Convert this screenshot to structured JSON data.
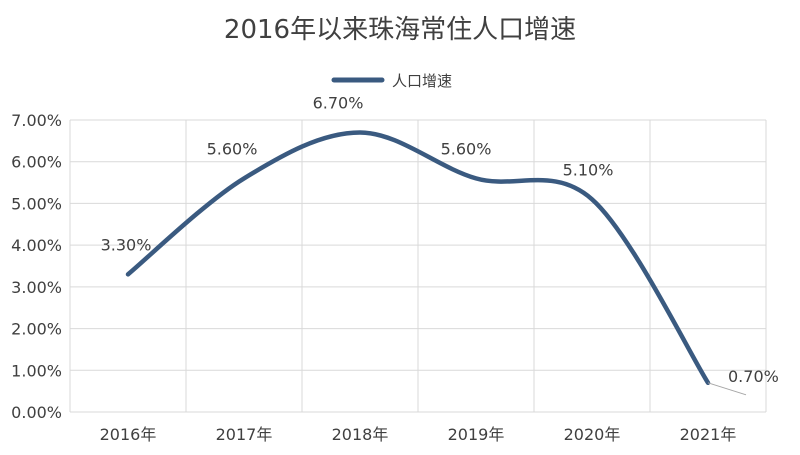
{
  "chart_data": {
    "type": "line",
    "title": "2016年以来珠海常住人口增速",
    "categories": [
      "2016年",
      "2017年",
      "2018年",
      "2019年",
      "2020年",
      "2021年"
    ],
    "series": [
      {
        "name": "人口增速",
        "values": [
          3.3,
          5.6,
          6.7,
          5.6,
          5.1,
          0.7
        ],
        "labels": [
          "3.30%",
          "5.60%",
          "6.70%",
          "5.60%",
          "5.10%",
          "0.70%"
        ]
      }
    ],
    "ylim": [
      0,
      7
    ],
    "yticks": [
      0,
      1,
      2,
      3,
      4,
      5,
      6,
      7
    ],
    "ytick_labels": [
      "0.00%",
      "1.00%",
      "2.00%",
      "3.00%",
      "4.00%",
      "5.00%",
      "6.00%",
      "7.00%"
    ],
    "line_color": "#3a5a80",
    "grid": true,
    "smooth": true,
    "legend_position": "top-center"
  }
}
